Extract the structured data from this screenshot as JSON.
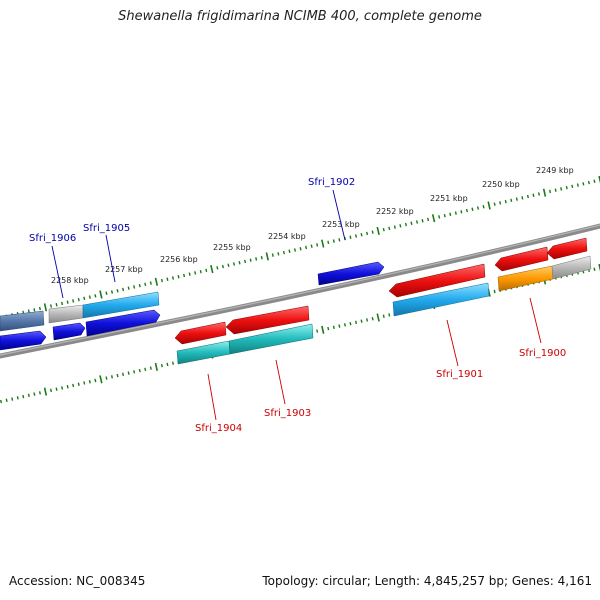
{
  "title": "Shewanella frigidimarina NCIMB 400, complete genome",
  "footer": {
    "accession": "Accession: NC_008345",
    "topology": "Topology: circular; Length: 4,845,257 bp; Genes: 4,161"
  },
  "scale_labels": [
    "2249 kbp",
    "2250 kbp",
    "2251 kbp",
    "2252 kbp",
    "2253 kbp",
    "2254 kbp",
    "2255 kbp",
    "2256 kbp",
    "2257 kbp",
    "2258 kbp"
  ],
  "gene_labels": {
    "forward": [
      "Sfri_1902",
      "Sfri_1905",
      "Sfri_1906"
    ],
    "reverse": [
      "Sfri_1900",
      "Sfri_1901",
      "Sfri_1903",
      "Sfri_1904"
    ]
  },
  "colors": {
    "label_forward": "#0000aa",
    "label_reverse": "#cc0000",
    "tick": "#1a7a1a",
    "backbone": "#808080",
    "gene_red": "#ee1111",
    "gene_blue": "#1111dd",
    "gene_sky": "#22aaee",
    "gene_teal": "#22bbbb",
    "gene_grey": "#b8b8b8",
    "gene_orange": "#ff9900",
    "gene_steel": "#5577aa"
  }
}
